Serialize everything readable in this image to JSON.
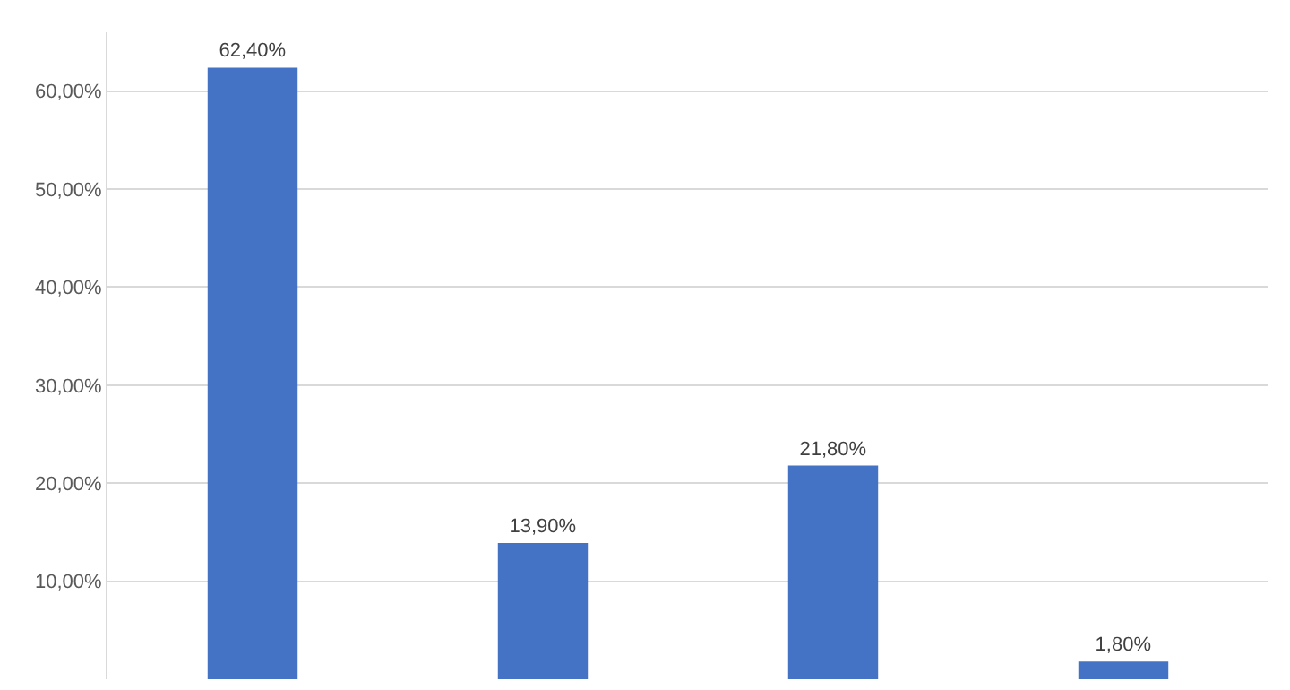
{
  "chart_data": {
    "type": "bar",
    "categories": [
      null,
      null,
      null,
      null
    ],
    "values": [
      62.4,
      13.9,
      21.8,
      1.8
    ],
    "value_labels": [
      "62,40%",
      "13,90%",
      "21,80%",
      "1,80%"
    ],
    "color": "#4472c4",
    "ylim": [
      0,
      66
    ],
    "yticks": [
      {
        "value": 10,
        "label": "10,00%"
      },
      {
        "value": 20,
        "label": "20,00%"
      },
      {
        "value": 30,
        "label": "30,00%"
      },
      {
        "value": 40,
        "label": "40,00%"
      },
      {
        "value": 50,
        "label": "50,00%"
      },
      {
        "value": 60,
        "label": "60,00%"
      }
    ],
    "grid": true,
    "tick_labels": "y"
  }
}
